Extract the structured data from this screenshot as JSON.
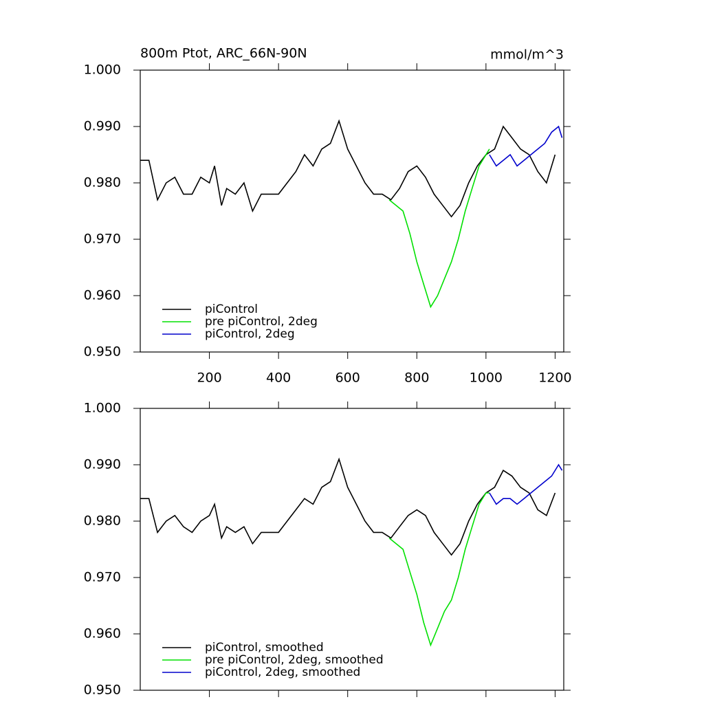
{
  "chart_data": [
    {
      "type": "line",
      "title": "800m Ptot, ARC_66N-90N",
      "units": "mmol/m^3",
      "xlim": [
        0,
        1225
      ],
      "xticks": [
        200,
        400,
        600,
        800,
        1000,
        1200
      ],
      "xtick_labels": true,
      "ylim": [
        0.95,
        1.0
      ],
      "yticks": [
        {
          "value": 0.95,
          "label": "0.950"
        },
        {
          "value": 0.96,
          "label": "0.960"
        },
        {
          "value": 0.97,
          "label": "0.970"
        },
        {
          "value": 0.98,
          "label": "0.980"
        },
        {
          "value": 0.99,
          "label": "0.990"
        },
        {
          "value": 1.0,
          "label": "1.000"
        }
      ],
      "legend": "lower left",
      "series": [
        {
          "name": "piControl",
          "color": "#000000",
          "x": [
            0,
            25,
            50,
            75,
            100,
            125,
            150,
            175,
            200,
            215,
            235,
            250,
            275,
            300,
            325,
            350,
            375,
            400,
            425,
            450,
            475,
            500,
            525,
            550,
            575,
            600,
            625,
            650,
            675,
            700,
            725,
            750,
            775,
            800,
            825,
            850,
            875,
            900,
            925,
            950,
            975,
            1000,
            1025,
            1050,
            1075,
            1100,
            1125,
            1150,
            1175,
            1200
          ],
          "values": [
            0.984,
            0.984,
            0.977,
            0.98,
            0.981,
            0.978,
            0.978,
            0.981,
            0.98,
            0.983,
            0.976,
            0.979,
            0.978,
            0.98,
            0.975,
            0.978,
            0.978,
            0.978,
            0.98,
            0.982,
            0.985,
            0.983,
            0.986,
            0.987,
            0.991,
            0.986,
            0.983,
            0.98,
            0.978,
            0.978,
            0.977,
            0.979,
            0.982,
            0.983,
            0.981,
            0.978,
            0.976,
            0.974,
            0.976,
            0.98,
            0.983,
            0.985,
            0.986,
            0.99,
            0.988,
            0.986,
            0.985,
            0.982,
            0.98,
            0.985
          ]
        },
        {
          "name": "pre piControl, 2deg",
          "color": "#00e000",
          "x": [
            720,
            740,
            760,
            780,
            800,
            820,
            840,
            860,
            880,
            900,
            920,
            940,
            960,
            980,
            1000,
            1010
          ],
          "values": [
            0.977,
            0.976,
            0.975,
            0.971,
            0.966,
            0.962,
            0.958,
            0.96,
            0.963,
            0.966,
            0.97,
            0.975,
            0.979,
            0.983,
            0.985,
            0.986
          ]
        },
        {
          "name": "piControl, 2deg",
          "color": "#0000cc",
          "x": [
            1010,
            1030,
            1050,
            1070,
            1090,
            1110,
            1130,
            1150,
            1170,
            1190,
            1210,
            1220
          ],
          "values": [
            0.985,
            0.983,
            0.984,
            0.985,
            0.983,
            0.984,
            0.985,
            0.986,
            0.987,
            0.989,
            0.99,
            0.988
          ]
        }
      ]
    },
    {
      "type": "line",
      "xlim": [
        0,
        1225
      ],
      "xticks": [
        200,
        400,
        600,
        800,
        1000,
        1200
      ],
      "xtick_labels": false,
      "ylim": [
        0.95,
        1.0
      ],
      "yticks": [
        {
          "value": 0.95,
          "label": "0.950"
        },
        {
          "value": 0.96,
          "label": "0.960"
        },
        {
          "value": 0.97,
          "label": "0.970"
        },
        {
          "value": 0.98,
          "label": "0.980"
        },
        {
          "value": 0.99,
          "label": "0.990"
        },
        {
          "value": 1.0,
          "label": "1.000"
        }
      ],
      "legend": "lower left",
      "series": [
        {
          "name": "piControl, smoothed",
          "color": "#000000",
          "x": [
            0,
            25,
            50,
            75,
            100,
            125,
            150,
            175,
            200,
            215,
            235,
            250,
            275,
            300,
            325,
            350,
            375,
            400,
            425,
            450,
            475,
            500,
            525,
            550,
            575,
            600,
            625,
            650,
            675,
            700,
            725,
            750,
            775,
            800,
            825,
            850,
            875,
            900,
            925,
            950,
            975,
            1000,
            1025,
            1050,
            1075,
            1100,
            1125,
            1150,
            1175,
            1200
          ],
          "values": [
            0.984,
            0.984,
            0.978,
            0.98,
            0.981,
            0.979,
            0.978,
            0.98,
            0.981,
            0.983,
            0.977,
            0.979,
            0.978,
            0.979,
            0.976,
            0.978,
            0.978,
            0.978,
            0.98,
            0.982,
            0.984,
            0.983,
            0.986,
            0.987,
            0.991,
            0.986,
            0.983,
            0.98,
            0.978,
            0.978,
            0.977,
            0.979,
            0.981,
            0.982,
            0.981,
            0.978,
            0.976,
            0.974,
            0.976,
            0.98,
            0.983,
            0.985,
            0.986,
            0.989,
            0.988,
            0.986,
            0.985,
            0.982,
            0.981,
            0.985
          ]
        },
        {
          "name": "pre piControl, 2deg, smoothed",
          "color": "#00e000",
          "x": [
            720,
            740,
            760,
            780,
            800,
            820,
            840,
            860,
            880,
            900,
            920,
            940,
            960,
            980,
            1000,
            1010
          ],
          "values": [
            0.977,
            0.976,
            0.975,
            0.971,
            0.967,
            0.962,
            0.958,
            0.961,
            0.964,
            0.966,
            0.97,
            0.975,
            0.979,
            0.983,
            0.985,
            0.985
          ]
        },
        {
          "name": "piControl, 2deg, smoothed",
          "color": "#0000cc",
          "x": [
            1010,
            1030,
            1050,
            1070,
            1090,
            1110,
            1130,
            1150,
            1170,
            1190,
            1210,
            1220
          ],
          "values": [
            0.985,
            0.983,
            0.984,
            0.984,
            0.983,
            0.984,
            0.985,
            0.986,
            0.987,
            0.988,
            0.99,
            0.989
          ]
        }
      ]
    }
  ]
}
